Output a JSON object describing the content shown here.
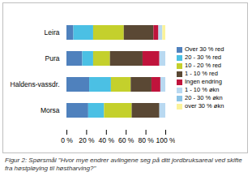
{
  "chart_data": {
    "type": "bar",
    "orientation": "horizontal",
    "stacked": true,
    "legend": "right",
    "caption": "Figur 2: Spørsmål \"Hvor mye endrer avlingene seg på ditt jordbruksareal ved skifte fra høstpløying til høstharving?\"",
    "categories": [
      "Leira",
      "Pura",
      "Haldens-vassdr.",
      "Morsa"
    ],
    "series": [
      {
        "name": "Over 30 % red",
        "color": "#4f81bd",
        "values": [
          7,
          16,
          23,
          22
        ]
      },
      {
        "name": "20 - 30 % red",
        "color": "#4bc0e4",
        "values": [
          20,
          11,
          22,
          16
        ]
      },
      {
        "name": "10 - 20 % red",
        "color": "#c4d02c",
        "values": [
          31,
          17,
          20,
          28
        ]
      },
      {
        "name": "1 - 10 % red",
        "color": "#5a4834",
        "values": [
          30,
          33,
          21,
          28
        ]
      },
      {
        "name": "Ingen endring",
        "color": "#c0143c",
        "values": [
          5,
          17,
          9,
          0
        ]
      },
      {
        "name": "1 - 10 % økn",
        "color": "#b9d9f1",
        "values": [
          4,
          6,
          5,
          6
        ]
      },
      {
        "name": "20 - 30 % økn",
        "color": "#8cc4e6",
        "values": [
          0,
          0,
          0,
          0
        ]
      },
      {
        "name": "over 30 % økn",
        "color": "#fbf39a",
        "values": [
          3,
          0,
          0,
          0
        ]
      }
    ],
    "xlim": [
      0,
      100
    ],
    "xticks": [
      {
        "value": 0,
        "label": "0 %"
      },
      {
        "value": 20,
        "label": "20 %"
      },
      {
        "value": 40,
        "label": "40 %"
      },
      {
        "value": 60,
        "label": "60 %"
      },
      {
        "value": 80,
        "label": "80 %"
      },
      {
        "value": 100,
        "label": "100 %"
      }
    ]
  }
}
